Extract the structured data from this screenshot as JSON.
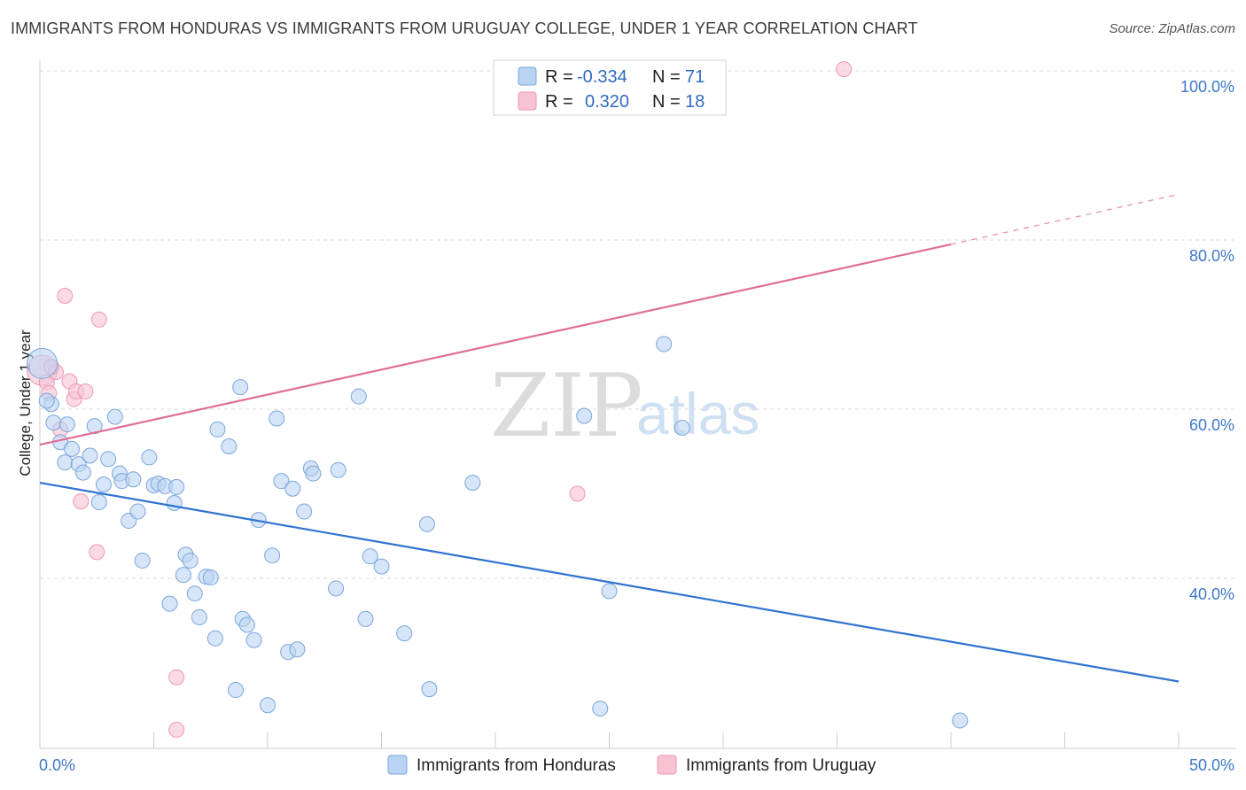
{
  "title": "IMMIGRANTS FROM HONDURAS VS IMMIGRANTS FROM URUGUAY COLLEGE, UNDER 1 YEAR CORRELATION CHART",
  "source": "Source: ZipAtlas.com",
  "watermark": {
    "zip": "ZIP",
    "atlas": "atlas"
  },
  "colors": {
    "blue_fill": "#bad3f2",
    "blue_stroke": "#7ba6db",
    "blue_line": "#2f73d0",
    "pink_fill": "#f7c3d3",
    "pink_stroke": "#ec97b3",
    "pink_line": "#e06e96",
    "tick_text": "#3d78c8",
    "grid": "#d9d9d9"
  },
  "legend": {
    "rows": [
      {
        "r_label": "R =",
        "r_value": "-0.334",
        "n_label": "N =",
        "n_value": "71"
      },
      {
        "r_label": "R =",
        "r_value": "0.320",
        "n_label": "N =",
        "n_value": "18"
      }
    ]
  },
  "chart_data": {
    "type": "scatter",
    "title": "IMMIGRANTS FROM HONDURAS VS IMMIGRANTS FROM URUGUAY COLLEGE, UNDER 1 YEAR CORRELATION CHART",
    "xlabel": "",
    "ylabel": "College, Under 1 year",
    "xlim": [
      0,
      50
    ],
    "ylim": [
      21,
      103
    ],
    "x_tick_labels": [
      {
        "value": 0,
        "label": "0.0%"
      },
      {
        "value": 50,
        "label": "50.0%"
      }
    ],
    "y_tick_labels": [
      {
        "value": 100,
        "label": "100.0%"
      },
      {
        "value": 80,
        "label": "80.0%"
      },
      {
        "value": 60,
        "label": "60.0%"
      },
      {
        "value": 40,
        "label": "40.0%"
      }
    ],
    "x_minor_ticks": [
      0,
      5,
      10,
      15,
      20,
      25,
      30,
      35,
      40,
      45,
      50
    ],
    "series": [
      {
        "name": "Immigrants from Honduras",
        "color": "blue",
        "trend": {
          "x0": 0,
          "y0": 51.3,
          "x1": 50,
          "y1": 27.8,
          "solid_until": 50
        },
        "points": [
          [
            0.1,
            65.4
          ],
          [
            0.5,
            60.6
          ],
          [
            0.6,
            58.4
          ],
          [
            0.9,
            56.1
          ],
          [
            1.1,
            53.7
          ],
          [
            1.2,
            58.2
          ],
          [
            1.4,
            55.3
          ],
          [
            1.7,
            53.5
          ],
          [
            1.9,
            52.5
          ],
          [
            2.2,
            54.5
          ],
          [
            2.4,
            58.0
          ],
          [
            2.6,
            49.0
          ],
          [
            2.8,
            51.1
          ],
          [
            3.0,
            54.1
          ],
          [
            3.3,
            59.1
          ],
          [
            3.5,
            52.4
          ],
          [
            3.6,
            51.5
          ],
          [
            3.9,
            46.8
          ],
          [
            4.1,
            51.7
          ],
          [
            4.3,
            47.9
          ],
          [
            4.5,
            42.1
          ],
          [
            4.8,
            54.3
          ],
          [
            5.0,
            51.0
          ],
          [
            5.2,
            51.2
          ],
          [
            5.5,
            50.9
          ],
          [
            5.7,
            37.0
          ],
          [
            5.9,
            48.9
          ],
          [
            6.0,
            50.8
          ],
          [
            6.3,
            40.4
          ],
          [
            6.4,
            42.8
          ],
          [
            6.6,
            42.1
          ],
          [
            6.8,
            38.2
          ],
          [
            7.0,
            35.4
          ],
          [
            7.3,
            40.2
          ],
          [
            7.5,
            40.1
          ],
          [
            7.7,
            32.9
          ],
          [
            7.8,
            57.6
          ],
          [
            8.3,
            55.6
          ],
          [
            8.6,
            26.8
          ],
          [
            8.8,
            62.6
          ],
          [
            8.9,
            35.2
          ],
          [
            9.1,
            34.5
          ],
          [
            9.4,
            32.7
          ],
          [
            9.6,
            46.9
          ],
          [
            10.0,
            25.0
          ],
          [
            10.2,
            42.7
          ],
          [
            10.4,
            58.9
          ],
          [
            10.6,
            51.5
          ],
          [
            10.9,
            31.3
          ],
          [
            11.1,
            50.6
          ],
          [
            11.3,
            31.6
          ],
          [
            11.6,
            47.9
          ],
          [
            11.9,
            53.0
          ],
          [
            12.0,
            52.4
          ],
          [
            13.1,
            52.8
          ],
          [
            13.0,
            38.8
          ],
          [
            14.0,
            61.5
          ],
          [
            14.3,
            35.2
          ],
          [
            14.5,
            42.6
          ],
          [
            15.0,
            41.4
          ],
          [
            16.0,
            33.5
          ],
          [
            17.0,
            46.4
          ],
          [
            17.1,
            26.9
          ],
          [
            19.0,
            51.3
          ],
          [
            23.9,
            59.2
          ],
          [
            24.6,
            24.6
          ],
          [
            25.0,
            38.5
          ],
          [
            27.4,
            67.7
          ],
          [
            28.2,
            57.8
          ],
          [
            40.4,
            23.2
          ],
          [
            0.3,
            61.0
          ]
        ]
      },
      {
        "name": "Immigrants from Uruguay",
        "color": "pink",
        "trend": {
          "x0": 0,
          "y0": 55.8,
          "x1": 50,
          "y1": 85.4,
          "solid_until": 40
        },
        "points": [
          [
            0.1,
            64.6
          ],
          [
            0.3,
            63.2
          ],
          [
            0.4,
            61.9
          ],
          [
            0.7,
            64.4
          ],
          [
            0.9,
            57.6
          ],
          [
            1.1,
            73.4
          ],
          [
            1.3,
            63.3
          ],
          [
            1.5,
            61.2
          ],
          [
            1.6,
            62.1
          ],
          [
            1.8,
            49.1
          ],
          [
            2.0,
            62.1
          ],
          [
            2.5,
            43.1
          ],
          [
            2.6,
            70.6
          ],
          [
            6.0,
            28.3
          ],
          [
            6.0,
            22.1
          ],
          [
            23.6,
            50.0
          ],
          [
            35.3,
            100.2
          ],
          [
            0.5,
            65.0
          ]
        ]
      }
    ]
  }
}
